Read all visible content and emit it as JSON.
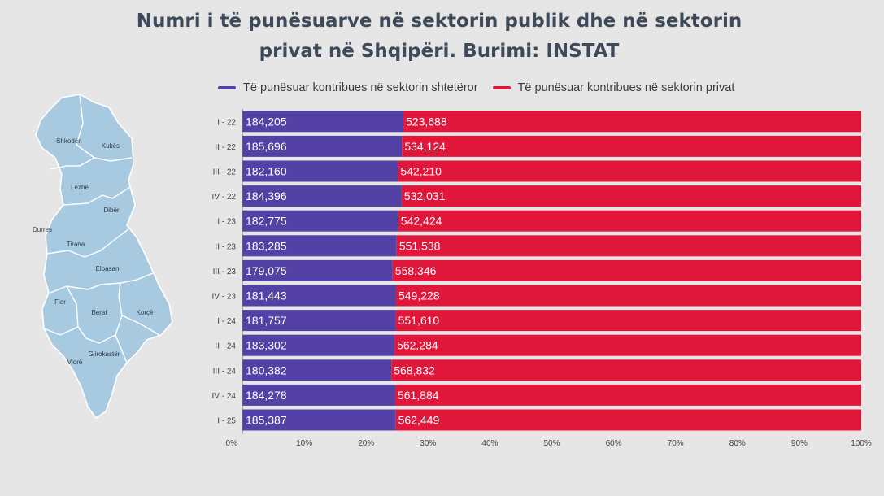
{
  "title_line1": "Numri i të punësuarve në sektorin publik dhe në sektorin",
  "title_line2": "privat në Shqipëri. Burimi: INSTAT",
  "colors": {
    "public": "#5341a5",
    "private": "#e0173a",
    "background": "#e6e6e6",
    "map": "#a8cae0"
  },
  "map_labels": {
    "shkoder": "Shkodër",
    "kukes": "Kukës",
    "lezhe": "Lezhë",
    "diber": "Dibër",
    "durres": "Durres",
    "tirana": "Tirana",
    "elbasan": "Elbasan",
    "fier": "Fier",
    "berat": "Berat",
    "korce": "Korçë",
    "gjirokaster": "Gjirokastër",
    "vlore": "Vlorë"
  },
  "chart_data": {
    "type": "bar",
    "orientation": "horizontal",
    "stacked": "percent",
    "categories": [
      "I - 22",
      "II - 22",
      "III - 22",
      "IV - 22",
      "I - 23",
      "II - 23",
      "III - 23",
      "IV - 23",
      "I - 24",
      "II - 24",
      "III - 24",
      "IV - 24",
      "I - 25"
    ],
    "series": [
      {
        "name": "Të punësuar kontribues në sektorin shtetëror",
        "values": [
          184205,
          185696,
          182160,
          184396,
          182775,
          183285,
          179075,
          181443,
          181757,
          183302,
          180382,
          184278,
          185387
        ],
        "labels": [
          "184,205",
          "185,696",
          "182,160",
          "184,396",
          "182,775",
          "183,285",
          "179,075",
          "181,443",
          "181,757",
          "183,302",
          "180,382",
          "184,278",
          "185,387"
        ]
      },
      {
        "name": "Të punësuar kontribues në sektorin privat",
        "values": [
          523688,
          534124,
          542210,
          532031,
          542424,
          551538,
          558346,
          549228,
          551610,
          562284,
          568832,
          561884,
          562449
        ],
        "labels": [
          "523,688",
          "534,124",
          "542,210",
          "532,031",
          "542,424",
          "551,538",
          "558,346",
          "549,228",
          "551,610",
          "562,284",
          "568,832",
          "561,884",
          "562,449"
        ]
      }
    ],
    "x_ticks": [
      "0%",
      "10%",
      "20%",
      "30%",
      "40%",
      "50%",
      "60%",
      "70%",
      "80%",
      "90%",
      "100%"
    ],
    "xlim": [
      0,
      100
    ],
    "legend_position": "top",
    "grid": false
  }
}
